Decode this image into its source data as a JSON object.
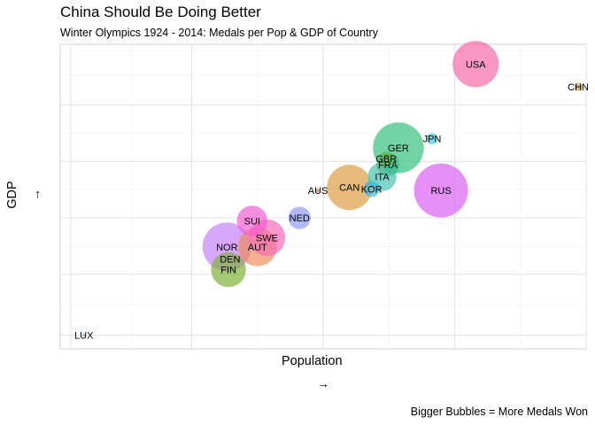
{
  "title": "China Should Be Doing Better",
  "subtitle": "Winter Olympics 1924 - 2014: Medals per Pop & GDP of Country",
  "caption": "Bigger Bubbles = More Medals Won",
  "chart_data": {
    "type": "scatter",
    "xlabel": "Population",
    "xarrow": "→",
    "ylabel": "GDP",
    "yarrow": "→",
    "xlim": [
      0,
      100
    ],
    "ylim": [
      0,
      100
    ],
    "grid": true,
    "legend": "none",
    "tick_labels": "none",
    "points": [
      {
        "label": "USA",
        "x": 79.0,
        "y": 93.5,
        "size": 282,
        "color": "#f565a5"
      },
      {
        "label": "CHN",
        "x": 98.5,
        "y": 86.0,
        "size": 9,
        "color": "#c8a13a"
      },
      {
        "label": "JPN",
        "x": 70.7,
        "y": 69.0,
        "size": 17,
        "color": "#3cc7dd"
      },
      {
        "label": "GER",
        "x": 64.3,
        "y": 66.0,
        "size": 343,
        "color": "#2fbf7b"
      },
      {
        "label": "GBR",
        "x": 62.0,
        "y": 62.5,
        "size": 26,
        "color": "#6cb44a"
      },
      {
        "label": "FRA",
        "x": 62.3,
        "y": 60.5,
        "size": 72,
        "color": "#3dbd8c"
      },
      {
        "label": "ITA",
        "x": 61.2,
        "y": 56.5,
        "size": 109,
        "color": "#43c4b0"
      },
      {
        "label": "KOR",
        "x": 59.2,
        "y": 52.5,
        "size": 34,
        "color": "#35b7e0"
      },
      {
        "label": "RUS",
        "x": 72.4,
        "y": 52.0,
        "size": 386,
        "color": "#d85bf3"
      },
      {
        "label": "AUS",
        "x": 49.0,
        "y": 52.0,
        "size": 2,
        "color": "#e06060"
      },
      {
        "label": "CAN",
        "x": 55.0,
        "y": 53.0,
        "size": 271,
        "color": "#dc9b3c"
      },
      {
        "label": "NED",
        "x": 45.5,
        "y": 43.0,
        "size": 66,
        "color": "#8c9af2"
      },
      {
        "label": "SUI",
        "x": 36.5,
        "y": 42.0,
        "size": 124,
        "color": "#f25ad0"
      },
      {
        "label": "SWE",
        "x": 39.3,
        "y": 36.5,
        "size": 178,
        "color": "#f868b8"
      },
      {
        "label": "AUT",
        "x": 37.5,
        "y": 33.5,
        "size": 198,
        "color": "#ef8a5c"
      },
      {
        "label": "NOR",
        "x": 31.7,
        "y": 33.5,
        "size": 314,
        "color": "#c47ef8"
      },
      {
        "label": "DEN",
        "x": 32.3,
        "y": 29.5,
        "size": 1,
        "color": "#a8a0a0"
      },
      {
        "label": "FIN",
        "x": 32.0,
        "y": 26.0,
        "size": 161,
        "color": "#7cb035"
      },
      {
        "label": "LUX",
        "x": 4.5,
        "y": 4.5,
        "size": 0.3,
        "color": "#3fa9d8"
      }
    ]
  }
}
